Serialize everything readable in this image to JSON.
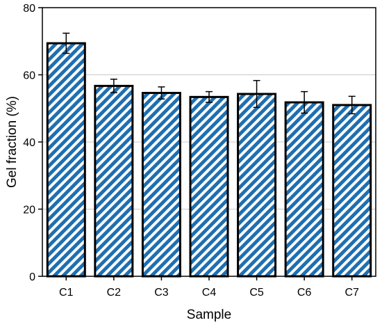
{
  "chart_data": {
    "type": "bar",
    "title": "",
    "xlabel": "Sample",
    "ylabel": "Gel fraction (%)",
    "categories": [
      "C1",
      "C2",
      "C3",
      "C4",
      "C5",
      "C6",
      "C7"
    ],
    "values": [
      69.4,
      56.7,
      54.6,
      53.4,
      54.3,
      51.8,
      51.0
    ],
    "errors": [
      3.0,
      2.0,
      1.8,
      1.6,
      4.0,
      3.2,
      2.6
    ],
    "ylim": [
      0,
      80
    ],
    "yticks": [
      "0",
      "20",
      "40",
      "60",
      "80"
    ],
    "grid": true,
    "bar_fill": "hatched",
    "colors": {
      "hatch": "#1f6fb0",
      "outline": "#000000",
      "grid": "#c8c8c8"
    }
  }
}
